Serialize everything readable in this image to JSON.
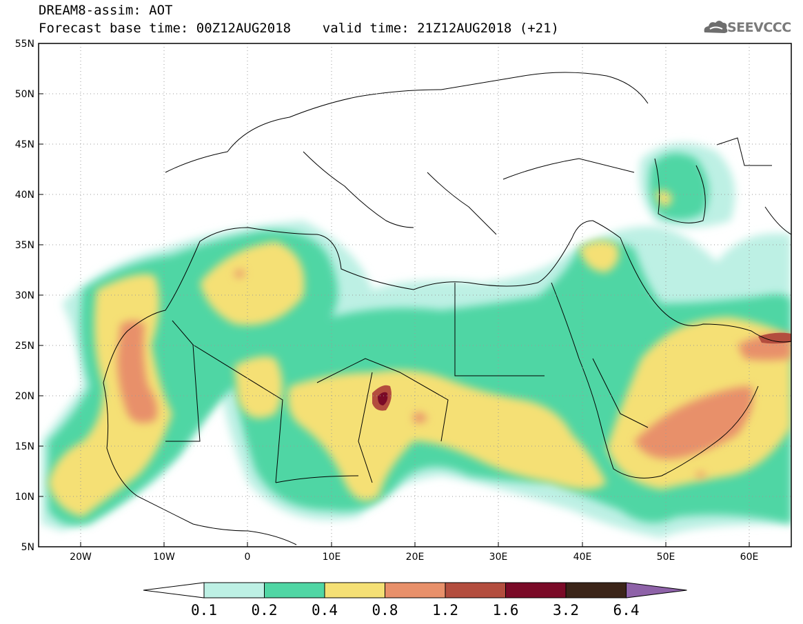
{
  "header": {
    "line1": "DREAM8-assim: AOT",
    "line2": "Forecast base time: 00Z12AUG2018    valid time: 21Z12AUG2018 (+21)"
  },
  "logo": {
    "text": "SEEVCCC",
    "icon": "cloud-icon",
    "color": "#6e6e6e"
  },
  "map": {
    "lon_range": [
      -25,
      65
    ],
    "lat_range": [
      5,
      55
    ],
    "lat_ticks": [
      "55N",
      "50N",
      "45N",
      "40N",
      "35N",
      "30N",
      "25N",
      "20N",
      "15N",
      "10N",
      "5N"
    ],
    "lon_ticks": [
      "20W",
      "10W",
      "0",
      "10E",
      "20E",
      "30E",
      "40E",
      "50E",
      "60E"
    ],
    "grid": "dotted"
  },
  "colorbar": {
    "labels": [
      "0.1",
      "0.2",
      "0.4",
      "0.8",
      "1.2",
      "1.6",
      "3.2",
      "6.4"
    ],
    "colors": [
      "#ffffff",
      "#bdf0e4",
      "#50d6a4",
      "#f5e075",
      "#e8906a",
      "#b34d3e",
      "#7a0a27",
      "#3b2418",
      "#8e62a8"
    ]
  }
}
